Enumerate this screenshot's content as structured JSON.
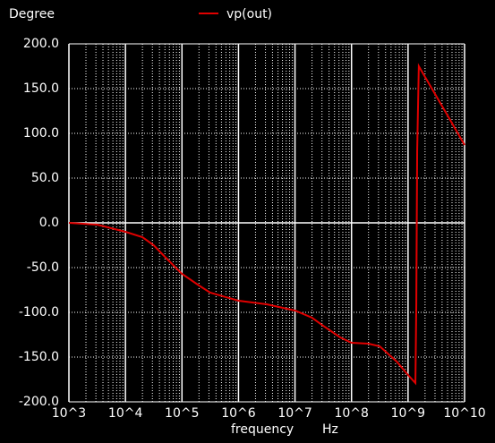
{
  "chart_data": {
    "type": "line",
    "ylabel": "Degree",
    "xlabel": "frequency",
    "xunit": "Hz",
    "x_log": true,
    "grid": true,
    "minor_grid": true,
    "legend": "top",
    "xlim": [
      1000,
      10000000000
    ],
    "xticks": [
      {
        "value": 1000,
        "label": "10^3"
      },
      {
        "value": 10000,
        "label": "10^4"
      },
      {
        "value": 100000,
        "label": "10^5"
      },
      {
        "value": 1000000,
        "label": "10^6"
      },
      {
        "value": 10000000,
        "label": "10^7"
      },
      {
        "value": 100000000,
        "label": "10^8"
      },
      {
        "value": 1000000000,
        "label": "10^9"
      },
      {
        "value": 10000000000,
        "label": "10^10"
      }
    ],
    "ylim": [
      -200,
      200
    ],
    "yticks": [
      {
        "value": -200,
        "label": "-200.0"
      },
      {
        "value": -150,
        "label": "-150.0"
      },
      {
        "value": -100,
        "label": "-100.0"
      },
      {
        "value": -50,
        "label": "-50.0"
      },
      {
        "value": 0,
        "label": "0.0"
      },
      {
        "value": 50,
        "label": "50.0"
      },
      {
        "value": 100,
        "label": "100.0"
      },
      {
        "value": 150,
        "label": "150.0"
      },
      {
        "value": 200,
        "label": "200.0"
      }
    ],
    "x": [
      1000,
      3160,
      10000,
      20000,
      31600,
      50000,
      100000,
      200000,
      316000,
      1000000,
      3160000,
      10000000,
      20000000,
      31600000,
      63000000,
      100000000,
      200000000,
      316000000,
      630000000,
      1000000000,
      1350000000,
      1400000000,
      1450000000,
      1550000000,
      2000000000,
      3000000000,
      5000000000,
      10000000000
    ],
    "series": [
      {
        "name": "vp(out)",
        "color": "#e00000",
        "values": [
          0,
          -2,
          -10,
          -16,
          -25,
          -38,
          -57,
          -70,
          -78,
          -87,
          -91,
          -98,
          -106,
          -115,
          -128,
          -134,
          -135,
          -138,
          -155,
          -170,
          -179,
          -90,
          80,
          175,
          163,
          144,
          120,
          87
        ]
      }
    ]
  }
}
